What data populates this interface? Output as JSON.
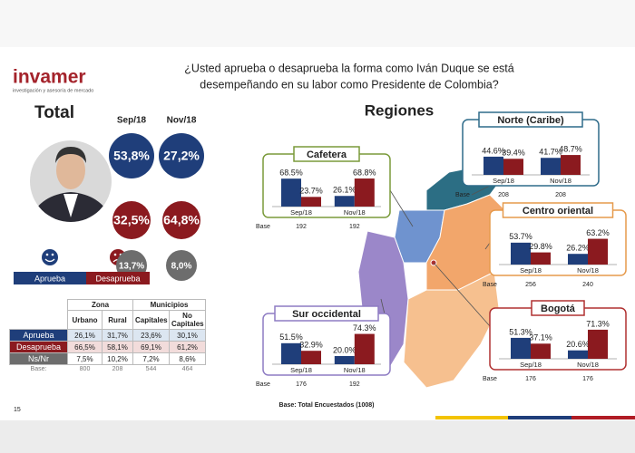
{
  "logo": {
    "name": "invamer",
    "tagline": "investigación y asesoría de mercado"
  },
  "title": [
    "¿Usted aprueba o desaprueba la forma como Iván Duque se está",
    "desempeñando en su labor como Presidente de Colombia?"
  ],
  "page_number": "15",
  "total": {
    "heading": "Total",
    "periods": [
      "Sep/18",
      "Nov/18"
    ],
    "rows": [
      {
        "color": "#1f3e7a",
        "values": [
          "53,8%",
          "27,2%"
        ]
      },
      {
        "color": "#8b1a1f",
        "values": [
          "32,5%",
          "64,8%"
        ]
      },
      {
        "color": "#6d6d6d",
        "values": [
          "13,7%",
          "8,0%"
        ]
      }
    ],
    "legend": [
      {
        "label": "Aprueba",
        "color": "#1f3e7a"
      },
      {
        "label": "Desaprueba",
        "color": "#8b1a1f"
      }
    ]
  },
  "table": {
    "groups": [
      "Zona",
      "Municipios"
    ],
    "columns": [
      "Urbano",
      "Rural",
      "Capitales",
      "No Capitales"
    ],
    "rows": [
      [
        "Aprueba",
        "26,1%",
        "31,7%",
        "23,6%",
        "30,1%"
      ],
      [
        "Desaprueba",
        "66,5%",
        "58,1%",
        "69,1%",
        "61,2%"
      ],
      [
        "Ns/Nr",
        "7,5%",
        "10,2%",
        "7,2%",
        "8,6%"
      ]
    ],
    "base": [
      "Base:",
      "800",
      "208",
      "544",
      "464"
    ]
  },
  "regions_heading": "Regiones",
  "footnote": "Base: Total Encuestados (1008)",
  "chart_data": [
    {
      "type": "bar",
      "title": "Cafetera",
      "categories": [
        "Sep/18",
        "Nov/18"
      ],
      "ylim": [
        0,
        80
      ],
      "series": [
        {
          "color": "#1f3e7a",
          "values": [
            68.5,
            26.1
          ],
          "value_labels": [
            "68.5%",
            "26.1%"
          ]
        },
        {
          "color": "#8b1a1f",
          "values": [
            23.7,
            68.8
          ],
          "value_labels": [
            "23.7%",
            "68.8%"
          ]
        }
      ],
      "base_label": "Base",
      "base": [
        192,
        192
      ]
    },
    {
      "type": "bar",
      "title": "Norte (Caribe)",
      "categories": [
        "Sep/18",
        "Nov/18"
      ],
      "ylim": [
        0,
        80
      ],
      "series": [
        {
          "color": "#1f3e7a",
          "values": [
            44.6,
            41.7
          ],
          "value_labels": [
            "44.6%",
            "41.7%"
          ]
        },
        {
          "color": "#8b1a1f",
          "values": [
            39.4,
            48.7
          ],
          "value_labels": [
            "39.4%",
            "48.7%"
          ]
        }
      ],
      "base_label": "Base",
      "base": [
        208,
        208
      ]
    },
    {
      "type": "bar",
      "title": "Centro oriental",
      "categories": [
        "Sep/18",
        "Nov/18"
      ],
      "ylim": [
        0,
        80
      ],
      "series": [
        {
          "color": "#1f3e7a",
          "values": [
            53.7,
            26.2
          ],
          "value_labels": [
            "53.7%",
            "26.2%"
          ]
        },
        {
          "color": "#8b1a1f",
          "values": [
            29.8,
            63.2
          ],
          "value_labels": [
            "29.8%",
            "63.2%"
          ]
        }
      ],
      "base_label": "Base",
      "base": [
        256,
        240
      ]
    },
    {
      "type": "bar",
      "title": "Bogotá",
      "categories": [
        "Sep/18",
        "Nov/18"
      ],
      "ylim": [
        0,
        80
      ],
      "series": [
        {
          "color": "#1f3e7a",
          "values": [
            51.3,
            20.6
          ],
          "value_labels": [
            "51.3%",
            "20.6%"
          ]
        },
        {
          "color": "#8b1a1f",
          "values": [
            37.1,
            71.3
          ],
          "value_labels": [
            "37.1%",
            "71.3%"
          ]
        }
      ],
      "base_label": "Base",
      "base": [
        176,
        176
      ]
    },
    {
      "type": "bar",
      "title": "Sur occidental",
      "categories": [
        "Sep/18",
        "Nov/18"
      ],
      "ylim": [
        0,
        80
      ],
      "series": [
        {
          "color": "#1f3e7a",
          "values": [
            51.5,
            20.0
          ],
          "value_labels": [
            "51.5%",
            "20.0%"
          ]
        },
        {
          "color": "#8b1a1f",
          "values": [
            32.9,
            74.3
          ],
          "value_labels": [
            "32.9%",
            "74.3%"
          ]
        }
      ],
      "base_label": "Base",
      "base": [
        176,
        192
      ]
    }
  ]
}
